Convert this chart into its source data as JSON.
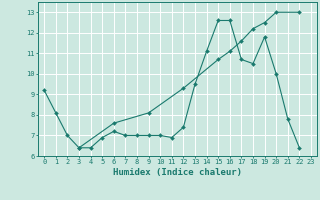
{
  "xlabel": "Humidex (Indice chaleur)",
  "bg_color": "#cce8e0",
  "line_color": "#1a7a6e",
  "grid_color": "#ffffff",
  "line1_x": [
    0,
    1,
    2,
    3,
    4,
    5,
    6,
    7,
    8,
    9,
    10,
    11,
    12,
    13,
    14,
    15,
    16,
    17,
    18,
    19,
    20,
    21,
    22
  ],
  "line1_y": [
    9.2,
    8.1,
    7.0,
    6.4,
    6.4,
    6.9,
    7.2,
    7.0,
    7.0,
    7.0,
    7.0,
    6.9,
    7.4,
    9.5,
    11.1,
    12.6,
    12.6,
    10.7,
    10.5,
    11.8,
    10.0,
    7.8,
    6.4
  ],
  "line2_x": [
    3,
    6,
    9,
    12,
    15,
    16,
    17,
    18,
    19,
    20,
    22
  ],
  "line2_y": [
    6.4,
    7.6,
    8.1,
    9.3,
    10.7,
    11.1,
    11.6,
    12.2,
    12.5,
    13.0,
    13.0
  ],
  "xlim": [
    -0.5,
    23.5
  ],
  "ylim": [
    6.0,
    13.5
  ],
  "xticks": [
    0,
    1,
    2,
    3,
    4,
    5,
    6,
    7,
    8,
    9,
    10,
    11,
    12,
    13,
    14,
    15,
    16,
    17,
    18,
    19,
    20,
    21,
    22,
    23
  ],
  "yticks": [
    6,
    7,
    8,
    9,
    10,
    11,
    12,
    13
  ],
  "markersize": 2.0,
  "linewidth": 0.8,
  "tick_fontsize": 5.0,
  "label_fontsize": 6.5
}
